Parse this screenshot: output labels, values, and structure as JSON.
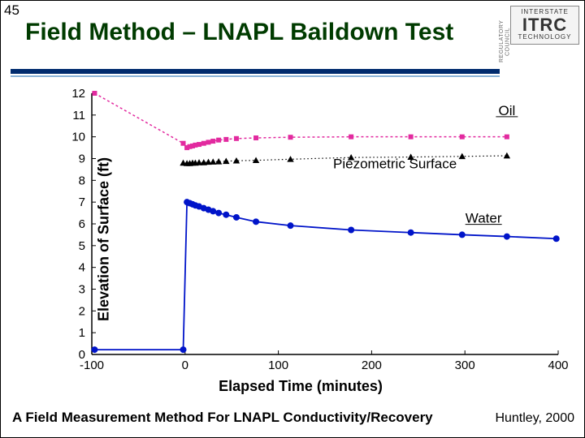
{
  "slide": {
    "number": "45",
    "title": "Field Method – LNAPL Baildown Test",
    "subtitle": "A Field Measurement Method For LNAPL Conductivity/Recovery",
    "citation": "Huntley, 2000"
  },
  "logo": {
    "top_text": "INTERSTATE",
    "main": "ITRC",
    "bottom_text": "TECHNOLOGY",
    "side_text": "REGULATORY COUNCIL"
  },
  "chart": {
    "type": "scatter-line",
    "xlabel": "Elapsed Time (minutes)",
    "ylabel": "Elevation of Surface (ft)",
    "title_fontsize": 30,
    "label_fontsize": 18,
    "tick_fontsize": 15,
    "background_color": "#ffffff",
    "axis_color": "#000000",
    "xlim": [
      -100,
      400
    ],
    "ylim": [
      0,
      12
    ],
    "xtick_step": 100,
    "ytick_step": 1,
    "xticks": [
      -100,
      0,
      100,
      200,
      300,
      400
    ],
    "yticks": [
      0,
      1,
      2,
      3,
      4,
      5,
      6,
      7,
      8,
      9,
      10,
      11,
      12
    ],
    "inner_tick_len": 5,
    "series": {
      "oil": {
        "label": "Oil",
        "color": "#e22a9f",
        "marker": "square",
        "marker_size": 6,
        "line_dash": "3,3",
        "line_width": 1.5,
        "label_pos": {
          "x": 345,
          "y": 11
        },
        "label_underline": true,
        "x": [
          -97,
          -2,
          2,
          5,
          8,
          11,
          15,
          20,
          25,
          30,
          36,
          44,
          55,
          76,
          113,
          178,
          242,
          297,
          345
        ],
        "y": [
          12.0,
          9.7,
          9.5,
          9.55,
          9.58,
          9.62,
          9.65,
          9.7,
          9.75,
          9.8,
          9.85,
          9.88,
          9.92,
          9.95,
          9.98,
          10.0,
          10.0,
          10.0,
          10.0
        ]
      },
      "piezo": {
        "label": "Piezometric Surface",
        "color": "#000000",
        "marker": "triangle",
        "marker_size": 6,
        "line_dash": "1.5,3",
        "line_width": 1.2,
        "label_pos": {
          "x": 225,
          "y": 8.55
        },
        "label_underline": false,
        "x": [
          -2,
          2,
          5,
          8,
          11,
          15,
          20,
          25,
          30,
          36,
          44,
          55,
          76,
          113,
          178,
          242,
          297,
          345
        ],
        "y": [
          8.8,
          8.78,
          8.78,
          8.8,
          8.8,
          8.82,
          8.82,
          8.84,
          8.85,
          8.86,
          8.88,
          8.9,
          8.92,
          8.97,
          9.05,
          9.07,
          9.1,
          9.13
        ]
      },
      "water": {
        "label": "Water",
        "color": "#0014c9",
        "marker": "circle",
        "marker_size": 4,
        "line_dash": "none",
        "line_width": 1.8,
        "label_pos": {
          "x": 320,
          "y": 6.05
        },
        "label_underline": true,
        "x": [
          -97,
          -2,
          2,
          5,
          8,
          11,
          15,
          20,
          25,
          30,
          36,
          44,
          55,
          76,
          113,
          178,
          242,
          297,
          345,
          398
        ],
        "y": [
          0.22,
          0.22,
          7.0,
          6.95,
          6.9,
          6.85,
          6.8,
          6.72,
          6.65,
          6.58,
          6.5,
          6.42,
          6.3,
          6.1,
          5.92,
          5.72,
          5.6,
          5.5,
          5.42,
          5.32
        ]
      }
    }
  }
}
